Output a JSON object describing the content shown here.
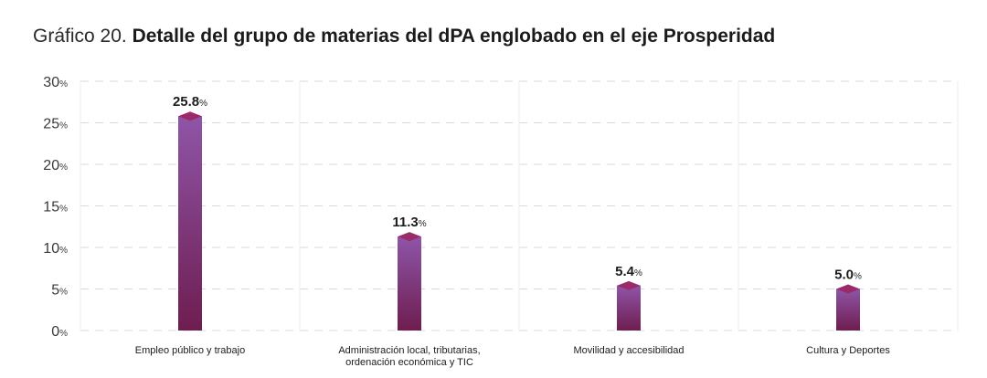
{
  "title": {
    "prefix": "Gráfico 20.",
    "main": "Detalle del grupo de materias del dPA englobado en el eje Prosperidad"
  },
  "chart_data": {
    "type": "bar",
    "title": "Gráfico 20. Detalle del grupo de materias del dPA englobado en el eje Prosperidad",
    "categories": [
      [
        "Empleo público y trabajo"
      ],
      [
        "Administración local, tributarias,",
        "ordenación económica y TIC"
      ],
      [
        "Movilidad y accesibilidad"
      ],
      [
        "Cultura y Deportes"
      ]
    ],
    "values": [
      25.8,
      11.3,
      5.4,
      5.0
    ],
    "value_labels": [
      "25.8",
      "11.3",
      "5.4",
      "5.0"
    ],
    "value_unit": "%",
    "y_ticks": [
      {
        "num": "0",
        "unit": "%"
      },
      {
        "num": "5",
        "unit": "%"
      },
      {
        "num": "10",
        "unit": "%"
      },
      {
        "num": "15",
        "unit": "%"
      },
      {
        "num": "20",
        "unit": "%"
      },
      {
        "num": "25",
        "unit": "%"
      },
      {
        "num": "30",
        "unit": "%"
      }
    ],
    "ylim": [
      0,
      30
    ],
    "grid": true,
    "legend": "none",
    "colors": {
      "bar_top": "#8f55a8",
      "bar_bottom": "#6e1d4f",
      "cap": "#9b2a6a",
      "grid": "#d9d9d9",
      "axis_text": "#3a3a3a"
    }
  }
}
